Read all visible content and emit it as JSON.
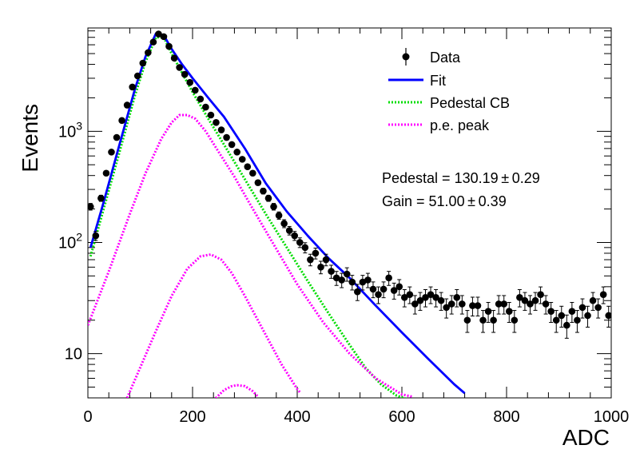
{
  "chart_data": {
    "type": "scatter",
    "xlabel": "ADC",
    "ylabel": "Events",
    "xlim": [
      0,
      1000
    ],
    "ylim": [
      4,
      8500
    ],
    "yscale": "log",
    "x_ticks": [
      {
        "value": 0,
        "label": "0"
      },
      {
        "value": 200,
        "label": "200"
      },
      {
        "value": 400,
        "label": "400"
      },
      {
        "value": 600,
        "label": "600"
      },
      {
        "value": 800,
        "label": "800"
      },
      {
        "value": 1000,
        "label": "1000"
      }
    ],
    "y_ticks": [
      {
        "value": 10,
        "base": "10",
        "exp": ""
      },
      {
        "value": 100,
        "base": "10",
        "exp": "2"
      },
      {
        "value": 1000,
        "base": "10",
        "exp": "3"
      }
    ],
    "legend_position": "top-right",
    "legend": [
      {
        "label": "Data",
        "style": "marker",
        "color": "#000000"
      },
      {
        "label": "Fit",
        "style": "solid",
        "color": "#0000ff"
      },
      {
        "label": "Pedestal CB",
        "style": "dotted",
        "color": "#00dd00"
      },
      {
        "label": "p.e. peak",
        "style": "dotted",
        "color": "#ff00ff"
      }
    ],
    "annotations": [
      {
        "text": "Pedestal = 130.19 ± 0.29"
      },
      {
        "text": "Gain = 51.00 ± 0.39"
      }
    ],
    "data": {
      "name": "Data",
      "x": [
        5,
        15,
        25,
        35,
        45,
        55,
        65,
        75,
        85,
        95,
        105,
        115,
        125,
        135,
        145,
        155,
        165,
        175,
        185,
        195,
        205,
        215,
        225,
        235,
        245,
        255,
        265,
        275,
        285,
        295,
        305,
        315,
        325,
        335,
        345,
        355,
        365,
        375,
        385,
        395,
        405,
        415,
        425,
        435,
        445,
        455,
        465,
        475,
        485,
        495,
        505,
        515,
        525,
        535,
        545,
        555,
        565,
        575,
        585,
        595,
        605,
        615,
        625,
        635,
        645,
        655,
        665,
        675,
        685,
        695,
        705,
        715,
        725,
        735,
        745,
        755,
        765,
        775,
        785,
        795,
        805,
        815,
        825,
        835,
        845,
        855,
        865,
        875,
        885,
        895,
        905,
        915,
        925,
        935,
        945,
        955,
        965,
        975,
        985,
        995
      ],
      "y": [
        210,
        115,
        250,
        420,
        650,
        880,
        1250,
        1720,
        2500,
        3150,
        4100,
        5100,
        6350,
        7500,
        7100,
        5800,
        4550,
        3750,
        3250,
        2750,
        2340,
        1950,
        1650,
        1400,
        1200,
        1030,
        880,
        760,
        650,
        560,
        480,
        420,
        345,
        290,
        250,
        210,
        175,
        148,
        128,
        115,
        100,
        90,
        70,
        80,
        60,
        70,
        55,
        48,
        46,
        52,
        44,
        36,
        44,
        46,
        38,
        34,
        38,
        48,
        37,
        40,
        32,
        34,
        28,
        30,
        32,
        34,
        32,
        30,
        26,
        28,
        32,
        28,
        20,
        27,
        27,
        20,
        24,
        20,
        28,
        28,
        24,
        20,
        32,
        30,
        28,
        30,
        34,
        28,
        24,
        20,
        22,
        18,
        24,
        20,
        26,
        22,
        30,
        26,
        34,
        22
      ]
    },
    "series": [
      {
        "name": "Fit",
        "x": [
          5,
          30,
          60,
          90,
          110,
          130,
          145,
          160,
          180,
          200,
          230,
          260,
          300,
          340,
          380,
          420,
          460,
          500,
          550,
          600,
          650,
          700,
          720
        ],
        "y": [
          90,
          230,
          750,
          2400,
          4700,
          7600,
          7300,
          5500,
          4000,
          3000,
          2000,
          1350,
          700,
          340,
          190,
          115,
          72,
          48,
          27,
          15.5,
          9,
          5.3,
          4.4
        ]
      },
      {
        "name": "Pedestal CB",
        "x": [
          5,
          30,
          60,
          90,
          110,
          130,
          145,
          160,
          180,
          200,
          230,
          260,
          300,
          340,
          380,
          420,
          460,
          500,
          530,
          560,
          590,
          610
        ],
        "y": [
          75,
          200,
          640,
          2100,
          4200,
          7000,
          7000,
          5000,
          3350,
          2250,
          1300,
          760,
          370,
          180,
          90,
          45,
          23,
          12,
          7.5,
          5.3,
          4.2,
          3.9
        ]
      },
      {
        "name": "p.e. peak 1",
        "x": [
          0,
          40,
          80,
          110,
          140,
          160,
          175,
          190,
          205,
          225,
          250,
          280,
          310,
          350,
          400,
          450,
          500,
          550,
          600,
          620
        ],
        "y": [
          18,
          55,
          180,
          420,
          850,
          1200,
          1400,
          1400,
          1300,
          1000,
          650,
          390,
          220,
          105,
          42,
          19,
          10,
          6,
          4.3,
          4.1
        ]
      },
      {
        "name": "p.e. peak 2",
        "x": [
          75,
          100,
          130,
          160,
          190,
          215,
          235,
          255,
          275,
          300,
          330,
          370,
          400,
          405
        ],
        "y": [
          4,
          7.5,
          16,
          33,
          58,
          75,
          78,
          70,
          53,
          33,
          18,
          8,
          4.8,
          4.5
        ]
      },
      {
        "name": "p.e. peak 3",
        "x": [
          240,
          260,
          275,
          285,
          300,
          315,
          325
        ],
        "y": [
          3.8,
          4.7,
          5.1,
          5.2,
          5.1,
          4.6,
          4.1
        ]
      }
    ]
  }
}
